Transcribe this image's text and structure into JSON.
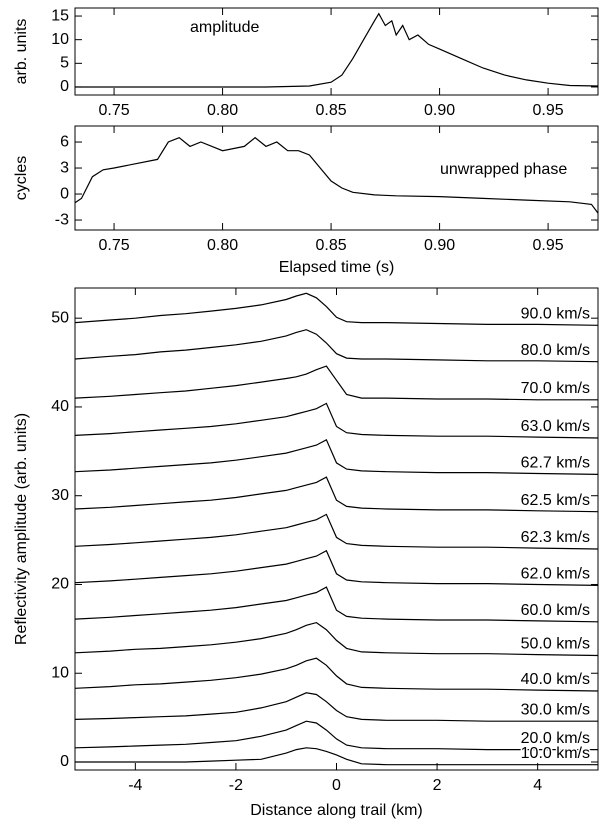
{
  "chart_data": [
    {
      "type": "line",
      "ylabel": "arb. units",
      "annotation": "amplitude",
      "x": [
        0.732,
        0.76,
        0.78,
        0.8,
        0.82,
        0.84,
        0.85,
        0.855,
        0.86,
        0.865,
        0.87,
        0.872,
        0.875,
        0.878,
        0.88,
        0.883,
        0.886,
        0.89,
        0.895,
        0.9,
        0.91,
        0.92,
        0.93,
        0.94,
        0.95,
        0.96,
        0.973
      ],
      "series": [
        {
          "name": "amplitude",
          "color": "#000000",
          "values": [
            0,
            0,
            0,
            0,
            0,
            0.2,
            1,
            2.5,
            6,
            10,
            14,
            15.5,
            13,
            14,
            11,
            13,
            10,
            11,
            9,
            8,
            6,
            4,
            2.5,
            1.5,
            0.8,
            0.3,
            0.2
          ]
        }
      ],
      "xlim": [
        0.732,
        0.973
      ],
      "xticks": [
        0.75,
        0.8,
        0.85,
        0.9,
        0.95
      ],
      "ylim": [
        -1.7,
        16.7
      ],
      "yticks": [
        0,
        5,
        10,
        15
      ]
    },
    {
      "type": "line",
      "ylabel": "cycles",
      "xlabel": "Elapsed time (s)",
      "annotation": "unwrapped phase",
      "x": [
        0.732,
        0.735,
        0.74,
        0.745,
        0.75,
        0.76,
        0.77,
        0.775,
        0.78,
        0.785,
        0.79,
        0.8,
        0.81,
        0.815,
        0.82,
        0.825,
        0.83,
        0.835,
        0.84,
        0.845,
        0.85,
        0.855,
        0.86,
        0.87,
        0.88,
        0.9,
        0.92,
        0.94,
        0.96,
        0.97,
        0.973
      ],
      "series": [
        {
          "name": "unwrapped phase",
          "color": "#000000",
          "values": [
            -1,
            -0.5,
            2,
            2.8,
            3,
            3.5,
            4,
            6,
            6.5,
            5.5,
            6,
            5,
            5.5,
            6.5,
            5.5,
            6,
            5,
            5,
            4.5,
            3,
            1.5,
            0.7,
            0.2,
            -0.1,
            -0.2,
            -0.3,
            -0.5,
            -0.7,
            -0.9,
            -1.2,
            -2.2
          ]
        }
      ],
      "xlim": [
        0.732,
        0.973
      ],
      "xticks": [
        0.75,
        0.8,
        0.85,
        0.9,
        0.95
      ],
      "ylim": [
        -4.15,
        7.85
      ],
      "yticks": [
        -3,
        0,
        3,
        6
      ]
    },
    {
      "type": "line",
      "ylabel": "Reflectivity amplitude (arb. units)",
      "xlabel": "Distance along trail (km)",
      "x": [
        -5.2,
        -4.5,
        -4,
        -3.5,
        -3,
        -2.5,
        -2,
        -1.5,
        -1,
        -0.8,
        -0.6,
        -0.4,
        -0.2,
        0,
        0.2,
        0.5,
        1,
        2,
        3,
        4,
        5.2
      ],
      "series": [
        {
          "name": "90.0 km/s",
          "color": "#000000",
          "values": [
            49.5,
            49.8,
            50,
            50.3,
            50.5,
            50.8,
            51.1,
            51.5,
            52.1,
            52.5,
            52.8,
            52.3,
            51.3,
            50.1,
            49.6,
            49.5,
            49.5,
            49.4,
            49.3,
            49.3,
            49.2
          ]
        },
        {
          "name": "80.0 km/s",
          "color": "#000000",
          "values": [
            45.4,
            45.7,
            45.9,
            46.2,
            46.4,
            46.7,
            47,
            47.4,
            48,
            48.4,
            48.7,
            48.2,
            47.2,
            46,
            45.5,
            45.4,
            45.4,
            45.3,
            45.2,
            45.2,
            45.1
          ]
        },
        {
          "name": "70.0 km/s",
          "color": "#000000",
          "values": [
            41,
            41.2,
            41.4,
            41.6,
            41.8,
            42.1,
            42.4,
            42.8,
            43.2,
            43.4,
            43.7,
            44.2,
            44.6,
            43,
            41.4,
            41,
            41,
            40.9,
            40.9,
            40.8,
            40.8
          ]
        },
        {
          "name": "63.0 km/s",
          "color": "#000000",
          "values": [
            36.8,
            37,
            37.2,
            37.4,
            37.6,
            37.8,
            38.1,
            38.5,
            38.9,
            39.2,
            39.5,
            39.8,
            40.4,
            37.8,
            37.1,
            36.9,
            36.8,
            36.7,
            36.7,
            36.6,
            36.5
          ]
        },
        {
          "name": "62.7 km/s",
          "color": "#000000",
          "values": [
            32.7,
            32.9,
            33.1,
            33.3,
            33.5,
            33.7,
            34,
            34.4,
            34.8,
            35.1,
            35.4,
            35.7,
            36.3,
            33.7,
            33,
            32.8,
            32.7,
            32.6,
            32.6,
            32.5,
            32.4
          ]
        },
        {
          "name": "62.5 km/s",
          "color": "#000000",
          "values": [
            28.5,
            28.7,
            28.9,
            29.1,
            29.3,
            29.5,
            29.8,
            30.2,
            30.6,
            30.9,
            31.2,
            31.5,
            32.1,
            29.5,
            28.8,
            28.6,
            28.5,
            28.4,
            28.4,
            28.3,
            28.2
          ]
        },
        {
          "name": "62.3 km/s",
          "color": "#000000",
          "values": [
            24.3,
            24.5,
            24.7,
            24.9,
            25.1,
            25.3,
            25.6,
            26,
            26.4,
            26.7,
            27,
            27.3,
            27.9,
            25.3,
            24.6,
            24.4,
            24.3,
            24.2,
            24.2,
            24.1,
            24
          ]
        },
        {
          "name": "62.0 km/s",
          "color": "#000000",
          "values": [
            20.2,
            20.4,
            20.6,
            20.8,
            21,
            21.2,
            21.5,
            21.9,
            22.3,
            22.6,
            22.9,
            23.2,
            23.8,
            21.2,
            20.5,
            20.3,
            20.2,
            20.1,
            20.1,
            20,
            19.9
          ]
        },
        {
          "name": "60.0 km/s",
          "color": "#000000",
          "values": [
            16.1,
            16.3,
            16.5,
            16.7,
            16.9,
            17.1,
            17.4,
            17.8,
            18.2,
            18.5,
            18.8,
            19.1,
            19.7,
            17.1,
            16.4,
            16.2,
            16.1,
            16,
            16,
            15.9,
            15.8
          ]
        },
        {
          "name": "50.0 km/s",
          "color": "#000000",
          "values": [
            12.3,
            12.5,
            12.7,
            12.8,
            13,
            13.2,
            13.5,
            13.9,
            14.5,
            14.9,
            15.4,
            15.7,
            14.9,
            13.7,
            12.8,
            12.4,
            12.3,
            12.2,
            12.2,
            12.1,
            12
          ]
        },
        {
          "name": "40.0 km/s",
          "color": "#000000",
          "values": [
            8.3,
            8.5,
            8.7,
            8.8,
            9,
            9.2,
            9.5,
            9.9,
            10.5,
            10.9,
            11.4,
            11.7,
            10.9,
            9.7,
            8.8,
            8.4,
            8.3,
            8.2,
            8.2,
            8.1,
            8
          ]
        },
        {
          "name": "30.0 km/s",
          "color": "#000000",
          "values": [
            4.8,
            4.9,
            5,
            5.1,
            5.2,
            5.4,
            5.6,
            6.1,
            6.8,
            7.3,
            7.8,
            7.6,
            6.8,
            5.8,
            5.1,
            4.8,
            4.7,
            4.7,
            4.6,
            4.6,
            4.6
          ]
        },
        {
          "name": "20.0 km/s",
          "color": "#000000",
          "values": [
            1.6,
            1.7,
            1.8,
            1.9,
            2,
            2.2,
            2.4,
            2.9,
            3.6,
            4.1,
            4.6,
            4.4,
            3.6,
            2.6,
            1.9,
            1.6,
            1.5,
            1.5,
            1.4,
            1.4,
            1.4
          ]
        },
        {
          "name": "10.0 km/s",
          "color": "#000000",
          "values": [
            0,
            0,
            0,
            0,
            0,
            0.1,
            0.2,
            0.3,
            1,
            1.4,
            1.6,
            1.5,
            1.2,
            0.8,
            0.3,
            -0.2,
            -0.3,
            -0.3,
            -0.3,
            -0.3,
            -0.3
          ]
        }
      ],
      "xlim": [
        -5.2,
        5.2
      ],
      "xticks": [
        -4,
        -2,
        0,
        2,
        4
      ],
      "ylim": [
        -0.9,
        53.4
      ],
      "yticks": [
        0,
        10,
        20,
        30,
        40,
        50
      ]
    }
  ]
}
